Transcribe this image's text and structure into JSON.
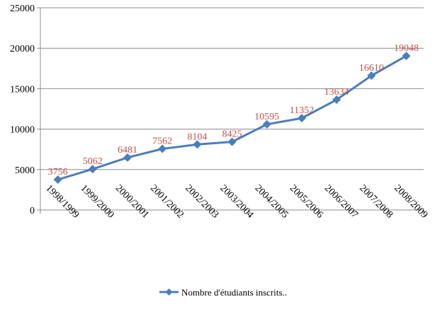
{
  "chart_data": {
    "type": "line",
    "title": "",
    "xlabel": "",
    "ylabel": "",
    "categories": [
      "1998/1999",
      "1999/2000",
      "2000/2001",
      "2001/2002",
      "2002/2003",
      "2003/2004",
      "2004/2005",
      "2005/2006",
      "2006/2007",
      "2007/2008",
      "2008/2009"
    ],
    "series": [
      {
        "name": "Nombre d'étudiants inscrits..",
        "values": [
          3756,
          5062,
          6481,
          7562,
          8104,
          8425,
          10595,
          11352,
          13634,
          16610,
          19048
        ],
        "labels": [
          "3756",
          "5062",
          "6481",
          "7562",
          "8104",
          "8425",
          "10595",
          "11352",
          "13634",
          "16610",
          "19048"
        ]
      }
    ],
    "ylim": [
      0,
      25000
    ],
    "yticks": [
      0,
      5000,
      10000,
      15000,
      20000,
      25000
    ],
    "ytick_labels": [
      "0",
      "5000",
      "10000",
      "15000",
      "20000",
      "25000"
    ],
    "grid": true,
    "legend_position": "bottom",
    "data_labels": true,
    "colors": {
      "line": "#4A7EBB",
      "marker": "#4A7EBB",
      "data_label": "#C0504D",
      "grid": "#8C8C8C",
      "axis": "#8C8C8C"
    }
  }
}
